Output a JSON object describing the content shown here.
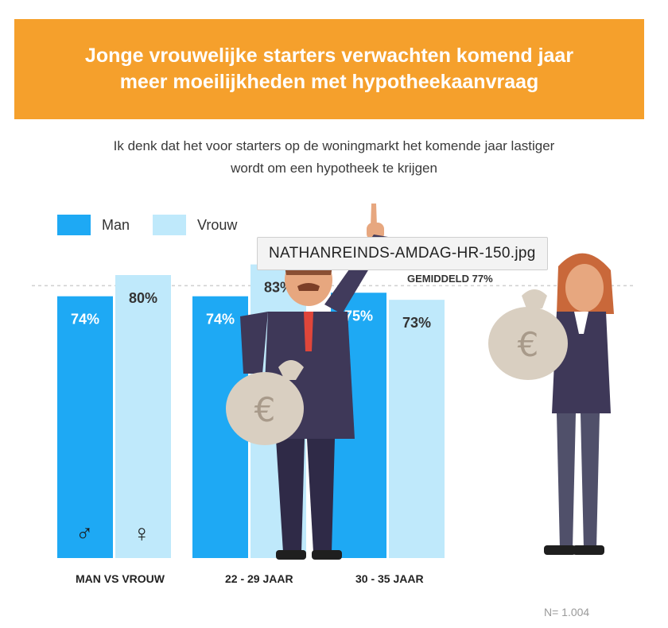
{
  "banner": {
    "line1": "Jonge vrouwelijke starters verwachten komend jaar",
    "line2": "meer moeilijkheden met hypotheekaanvraag"
  },
  "subtitle": {
    "line1": "Ik denk dat het voor starters op de woningmarkt het komende jaar lastiger",
    "line2": "wordt om een hypotheek te krijgen"
  },
  "tooltip": "NATHANREINDS-AMDAG-HR-150.jpg",
  "sample_size": "N= 1.004",
  "icons": {
    "male": "♂",
    "female": "♀"
  },
  "colors": {
    "man": "#1EA9F4",
    "vrouw": "#BFE9FB",
    "banner": "#F5A02C"
  },
  "chart_data": {
    "type": "bar",
    "categories": [
      "MAN VS VROUW",
      "22 - 29 JAAR",
      "30 - 35 JAAR"
    ],
    "series": [
      {
        "name": "Man",
        "values": [
          74,
          74,
          75
        ]
      },
      {
        "name": "Vrouw",
        "values": [
          80,
          83,
          73
        ]
      }
    ],
    "value_labels": [
      [
        "74%",
        "74%",
        "75%"
      ],
      [
        "80%",
        "83%",
        "73%"
      ]
    ],
    "average": {
      "label": "GEMIDDELD 77%",
      "value": 77
    },
    "ylim": [
      0,
      100
    ],
    "legend": "top-left",
    "grid": false
  }
}
